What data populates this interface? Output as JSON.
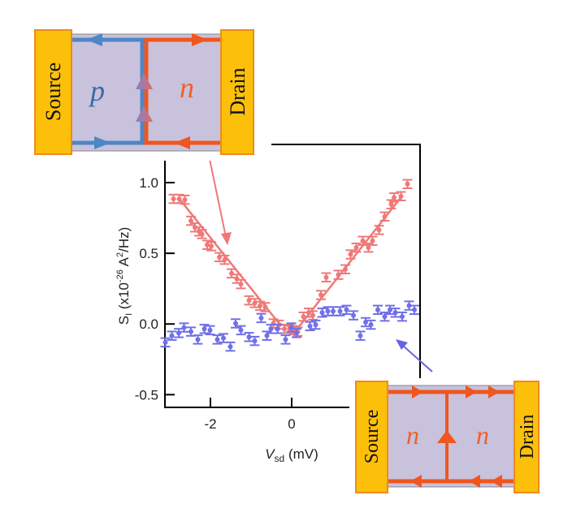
{
  "chart_data": {
    "type": "scatter",
    "xlabel": {
      "main": "V",
      "sub": "sd",
      "unit": " (mV)"
    },
    "ylabel": {
      "main": "S",
      "sub": "I",
      "pre": " (x10",
      "exp": "-26",
      "mid": " A",
      "exp2": "2",
      "post": "/Hz)"
    },
    "xlim": [
      -3.12,
      3.16
    ],
    "ylim": [
      -0.59,
      1.27
    ],
    "xticks": [
      {
        "v": -2,
        "label": "-2"
      },
      {
        "v": 0,
        "label": "0"
      }
    ],
    "yticks": [
      {
        "v": 1.0,
        "label": "1.0"
      },
      {
        "v": 0.5,
        "label": "0.5"
      },
      {
        "v": 0.0,
        "label": "0.0"
      },
      {
        "v": -0.5,
        "label": "-0.5"
      }
    ],
    "grid": false,
    "error_bar": 0.03,
    "series": [
      {
        "color": "#f07878",
        "x": [
          -2.91,
          -2.77,
          -2.63,
          -2.48,
          -2.38,
          -2.28,
          -2.21,
          -2.08,
          -1.98,
          -1.78,
          -1.65,
          -1.48,
          -1.35,
          -1.25,
          -1.05,
          -0.91,
          -0.78,
          -0.65,
          -0.45,
          -0.31,
          -0.18,
          -0.05,
          0.05,
          0.15,
          0.29,
          0.42,
          0.52,
          0.72,
          0.85,
          1.15,
          1.32,
          1.45,
          1.59,
          1.75,
          1.89,
          1.99,
          2.15,
          2.29,
          2.45,
          2.52,
          2.69,
          2.85
        ],
        "y": [
          0.885,
          0.885,
          0.879,
          0.73,
          0.683,
          0.655,
          0.636,
          0.56,
          0.55,
          0.473,
          0.454,
          0.358,
          0.32,
          0.282,
          0.167,
          0.148,
          0.128,
          0.119,
          0.004,
          -0.005,
          -0.035,
          -0.035,
          -0.044,
          -0.054,
          0.052,
          0.08,
          0.061,
          0.205,
          0.33,
          0.348,
          0.387,
          0.492,
          0.54,
          0.588,
          0.54,
          0.588,
          0.665,
          0.76,
          0.847,
          0.895,
          0.904,
          0.99
        ],
        "fit": {
          "x": [
            -2.75,
            -0.3,
            0.15,
            2.7
          ],
          "y": [
            0.88,
            0.0,
            -0.03,
            0.9
          ]
        }
      },
      {
        "color": "#7070e8",
        "x": [
          -3.11,
          -2.95,
          -2.78,
          -2.65,
          -2.48,
          -2.31,
          -2.15,
          -2.01,
          -1.83,
          -1.68,
          -1.51,
          -1.38,
          -1.25,
          -1.05,
          -0.91,
          -0.75,
          -0.61,
          -0.51,
          -0.35,
          -0.15,
          -0.01,
          0.12,
          0.45,
          0.59,
          0.75,
          0.89,
          1.02,
          1.19,
          1.35,
          1.52,
          1.69,
          1.82,
          1.95,
          2.12,
          2.29,
          2.42,
          2.55,
          2.72,
          2.89,
          3.02
        ],
        "y": [
          -0.13,
          -0.083,
          -0.064,
          -0.025,
          -0.054,
          -0.11,
          -0.035,
          -0.044,
          -0.11,
          -0.1,
          -0.16,
          0.004,
          -0.044,
          -0.092,
          -0.12,
          0.042,
          -0.083,
          -0.035,
          -0.035,
          -0.11,
          -0.025,
          -0.064,
          -0.015,
          -0.005,
          0.08,
          0.09,
          0.09,
          0.09,
          0.1,
          0.061,
          -0.083,
          0.013,
          -0.005,
          0.1,
          0.052,
          0.1,
          0.08,
          0.052,
          0.13,
          0.1
        ]
      }
    ]
  },
  "insets": {
    "top": {
      "source": "Source",
      "drain": "Drain",
      "left_region": "p",
      "right_region": "n"
    },
    "bottom": {
      "source": "Source",
      "drain": "Drain",
      "left_region": "n",
      "right_region": "n"
    }
  },
  "colors": {
    "contact": "#fcc00a",
    "contact_edge": "#f08a1e",
    "channel": "#c8c2dc",
    "p_edge": "#4f86c6",
    "n_edge": "#f0561e",
    "pointer_red": "#f07878",
    "pointer_blue": "#6464e0"
  }
}
